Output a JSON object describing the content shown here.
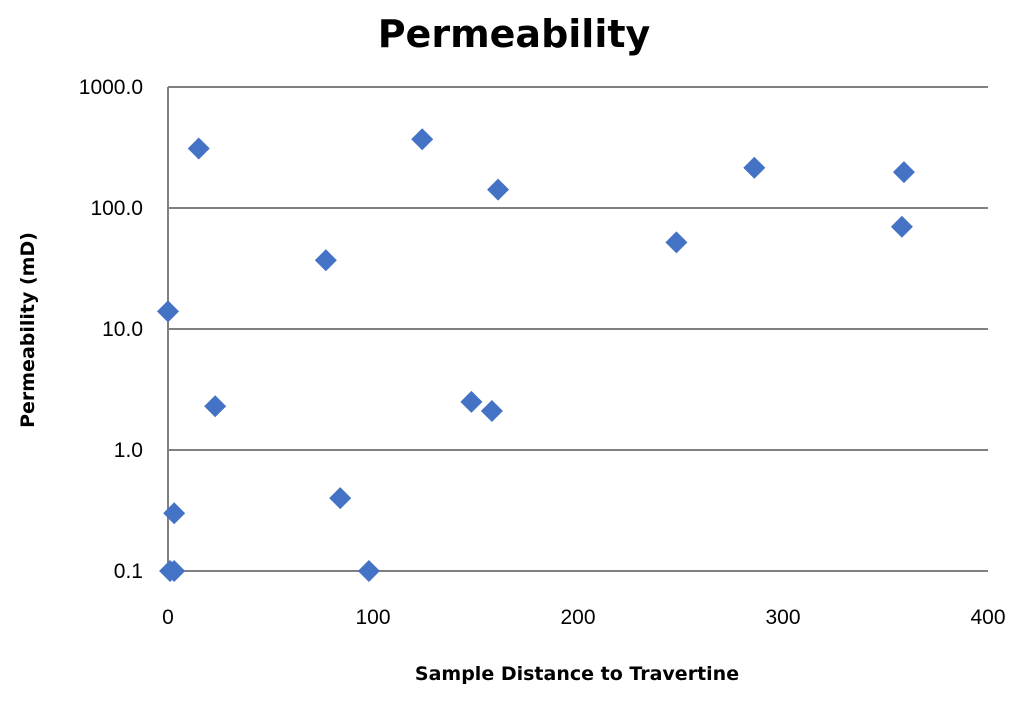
{
  "chart_data": {
    "type": "scatter",
    "title": "Permeability",
    "xlabel": "Sample Distance  to Travertine",
    "ylabel": "Permeability (mD)",
    "xlim": [
      0,
      400
    ],
    "ylim": [
      0.1,
      1000
    ],
    "y_scale": "log",
    "x_ticks": [
      "0",
      "100",
      "200",
      "300",
      "400"
    ],
    "y_ticks": [
      "0.1",
      "1.0",
      "10.0",
      "100.0",
      "1000.0"
    ],
    "grid": "horizontal",
    "legend": "none",
    "marker": "diamond",
    "marker_color": "#4472C4",
    "points": [
      {
        "x": 0,
        "y": 14
      },
      {
        "x": 1,
        "y": 0.1
      },
      {
        "x": 3,
        "y": 0.1
      },
      {
        "x": 3,
        "y": 0.3
      },
      {
        "x": 15,
        "y": 310
      },
      {
        "x": 23,
        "y": 2.3
      },
      {
        "x": 77,
        "y": 37
      },
      {
        "x": 84,
        "y": 0.4
      },
      {
        "x": 98,
        "y": 0.1
      },
      {
        "x": 124,
        "y": 370
      },
      {
        "x": 148,
        "y": 2.5
      },
      {
        "x": 158,
        "y": 2.1
      },
      {
        "x": 161,
        "y": 142
      },
      {
        "x": 248,
        "y": 52
      },
      {
        "x": 286,
        "y": 215
      },
      {
        "x": 358,
        "y": 70
      },
      {
        "x": 359,
        "y": 198
      }
    ]
  }
}
